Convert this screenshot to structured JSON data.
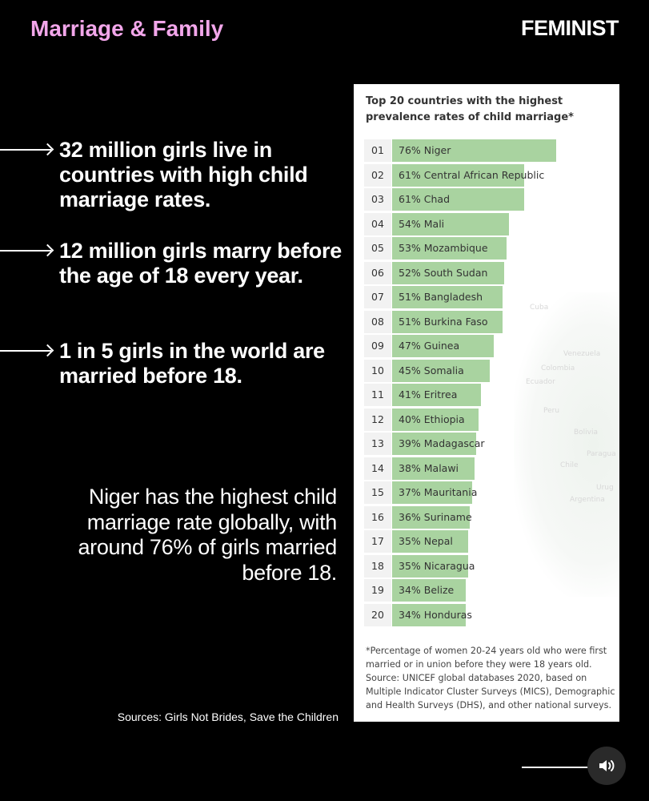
{
  "header": {
    "section": "Marriage & Family",
    "brand": "FEMINIST"
  },
  "facts": [
    {
      "text": "32 million girls live in countries with high child marriage rates."
    },
    {
      "text": "12 million girls marry before the age of 18 every year."
    },
    {
      "text": "1 in 5 girls in the world are married before 18."
    }
  ],
  "paragraph": "Niger has the highest child marriage rate globally, with around 76% of girls married before 18.",
  "sources": "Sources: Girls Not Brides, Save the Children",
  "map_labels": [
    "Cuba",
    "Venezuela",
    "Colombia",
    "Ecuador",
    "Peru",
    "Bolivia",
    "Paragua",
    "Chile",
    "Urug",
    "Argentina"
  ],
  "chart_data": {
    "type": "bar",
    "orientation": "horizontal",
    "title": "Top 20 countries with the highest prevalence rates of child marriage*",
    "ranks": [
      "01",
      "02",
      "03",
      "04",
      "05",
      "06",
      "07",
      "08",
      "09",
      "10",
      "11",
      "12",
      "13",
      "14",
      "15",
      "16",
      "17",
      "18",
      "19",
      "20"
    ],
    "categories": [
      "Niger",
      "Central African Republic",
      "Chad",
      "Mali",
      "Mozambique",
      "South Sudan",
      "Bangladesh",
      "Burkina Faso",
      "Guinea",
      "Somalia",
      "Eritrea",
      "Ethiopia",
      "Madagascar",
      "Malawi",
      "Mauritania",
      "Suriname",
      "Nepal",
      "Nicaragua",
      "Belize",
      "Honduras"
    ],
    "values": [
      76,
      61,
      61,
      54,
      53,
      52,
      51,
      51,
      47,
      45,
      41,
      40,
      39,
      38,
      37,
      36,
      35,
      35,
      34,
      34
    ],
    "unit": "%",
    "bar_color": "#a9d3a0",
    "grid": false,
    "footnote": "*Percentage of women 20-24 years old who were first married or in union before they were 18 years old. Source: UNICEF global databases 2020, based on Multiple Indicator Cluster Surveys (MICS), Demographic and Health Surveys (DHS), and other national surveys."
  },
  "colors": {
    "background": "#000000",
    "section": "#f2a6ea",
    "bar": "#a9d3a0"
  },
  "controls": {
    "sound_icon": "speaker-icon"
  }
}
